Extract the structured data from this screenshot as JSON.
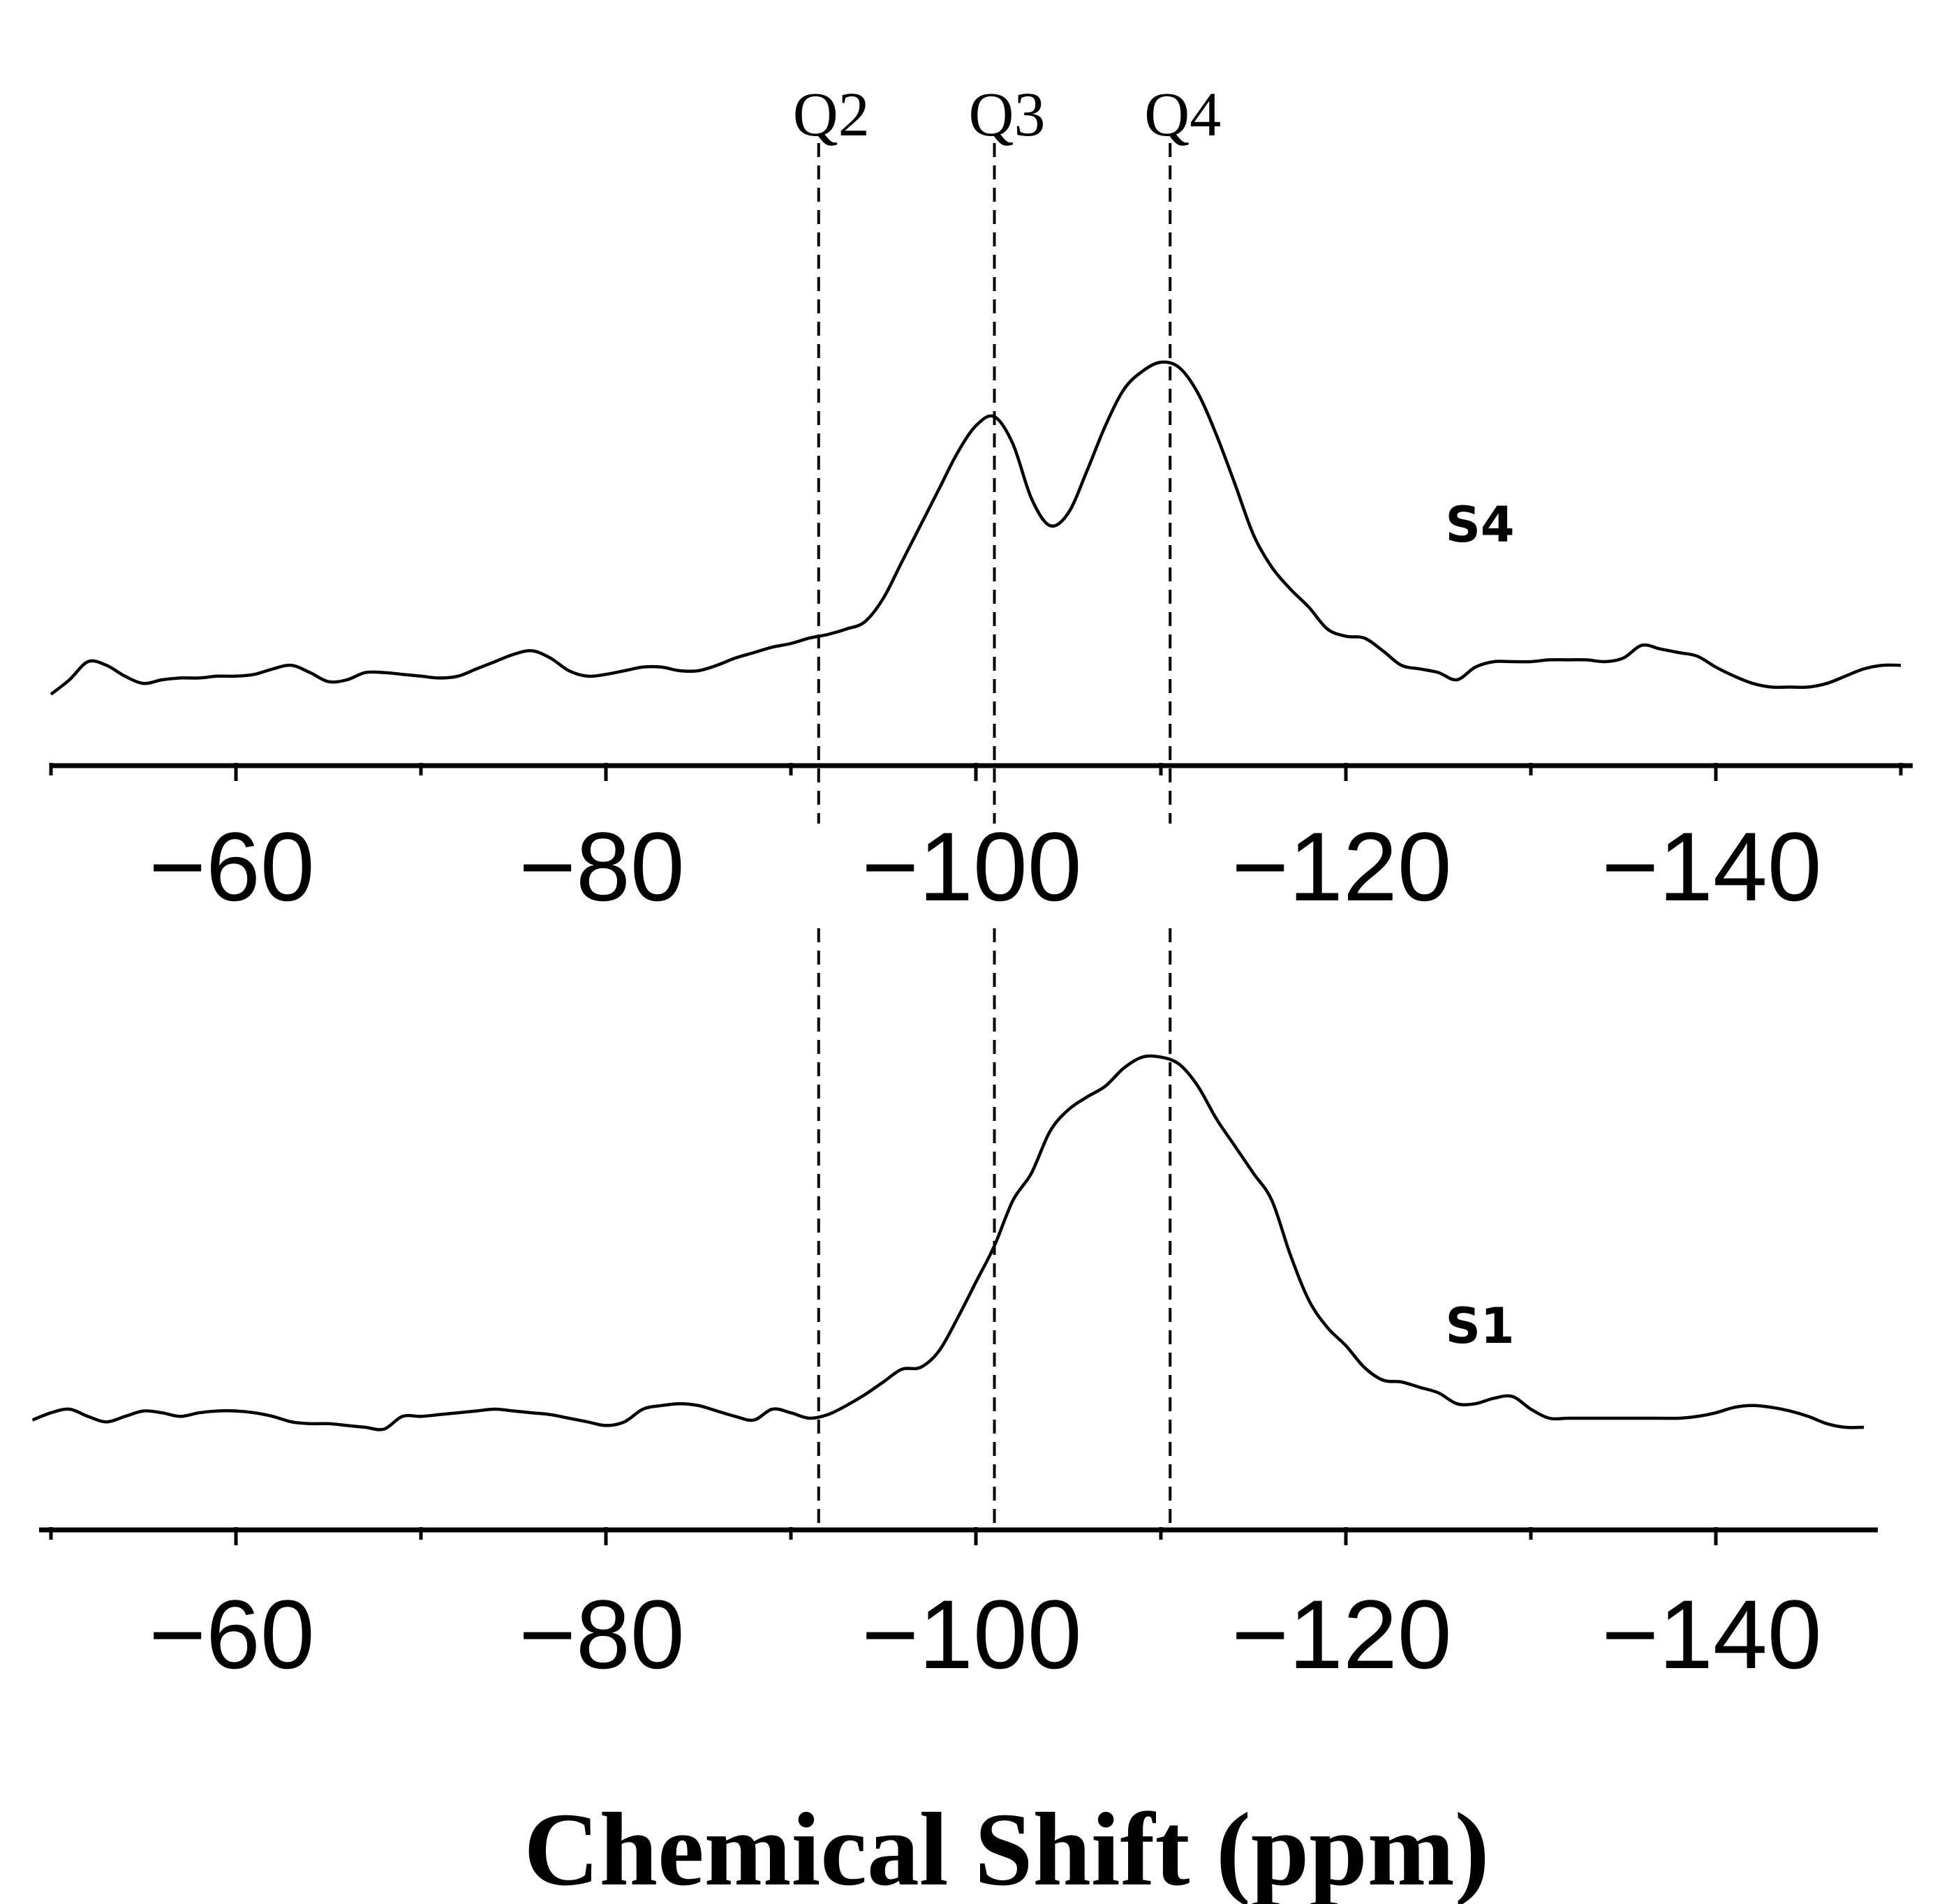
{
  "chart_data": {
    "type": "line",
    "xlabel": "Chemical Shift (ppm)",
    "xlim": [
      -50,
      -150
    ],
    "x_ticks": [
      -60,
      -80,
      -100,
      -120,
      -140
    ],
    "reference_lines": [
      {
        "label": "Q2",
        "x": -91.5
      },
      {
        "label": "Q3",
        "x": -101
      },
      {
        "label": "Q4",
        "x": -110.5
      }
    ],
    "panels": [
      {
        "name": "S4",
        "x": [
          -50,
          -51,
          -52,
          -53,
          -54,
          -55,
          -56,
          -57,
          -58,
          -59,
          -60,
          -61,
          -62,
          -63,
          -64,
          -65,
          -66,
          -67,
          -68,
          -69,
          -70,
          -71,
          -72,
          -73,
          -74,
          -75,
          -76,
          -77,
          -78,
          -79,
          -80,
          -81,
          -82,
          -83,
          -84,
          -85,
          -86,
          -87,
          -88,
          -89,
          -90,
          -91,
          -92,
          -93,
          -94,
          -95,
          -96,
          -97,
          -98,
          -99,
          -100,
          -101,
          -102,
          -103,
          -104,
          -105,
          -106,
          -107,
          -108,
          -109,
          -110,
          -111,
          -112,
          -113,
          -114,
          -115,
          -116,
          -117,
          -118,
          -119,
          -120,
          -121,
          -122,
          -123,
          -124,
          -125,
          -126,
          -127,
          -128,
          -129,
          -130,
          -131,
          -132,
          -133,
          -134,
          -135,
          -136,
          -137,
          -138,
          -139,
          -140,
          -141,
          -142,
          -143,
          -144,
          -145,
          -146,
          -147,
          -148,
          -149,
          -150
        ],
        "y": [
          0.02,
          0.1,
          0.2,
          0.18,
          0.12,
          0.08,
          0.1,
          0.11,
          0.11,
          0.12,
          0.12,
          0.13,
          0.16,
          0.18,
          0.14,
          0.09,
          0.1,
          0.14,
          0.14,
          0.13,
          0.12,
          0.11,
          0.12,
          0.16,
          0.2,
          0.24,
          0.26,
          0.22,
          0.15,
          0.12,
          0.13,
          0.15,
          0.17,
          0.17,
          0.15,
          0.15,
          0.18,
          0.22,
          0.25,
          0.28,
          0.3,
          0.33,
          0.35,
          0.38,
          0.42,
          0.55,
          0.75,
          0.95,
          1.15,
          1.35,
          1.5,
          1.55,
          1.4,
          1.1,
          0.95,
          1.02,
          1.25,
          1.5,
          1.7,
          1.8,
          1.85,
          1.82,
          1.68,
          1.45,
          1.18,
          0.9,
          0.72,
          0.6,
          0.5,
          0.38,
          0.34,
          0.33,
          0.26,
          0.18,
          0.16,
          0.14,
          0.1,
          0.17,
          0.2,
          0.2,
          0.2,
          0.21,
          0.21,
          0.21,
          0.2,
          0.22,
          0.29,
          0.27,
          0.25,
          0.23,
          0.17,
          0.12,
          0.08,
          0.06,
          0.06,
          0.06,
          0.08,
          0.12,
          0.16,
          0.18,
          0.18
        ]
      },
      {
        "name": "S1",
        "x": [
          -49,
          -50,
          -51,
          -52,
          -53,
          -54,
          -55,
          -56,
          -57,
          -58,
          -59,
          -60,
          -61,
          -62,
          -63,
          -64,
          -65,
          -66,
          -67,
          -68,
          -69,
          -70,
          -71,
          -72,
          -73,
          -74,
          -75,
          -76,
          -77,
          -78,
          -79,
          -80,
          -81,
          -82,
          -83,
          -84,
          -85,
          -86,
          -87,
          -88,
          -89,
          -90,
          -91,
          -92,
          -93,
          -94,
          -95,
          -96,
          -97,
          -98,
          -99,
          -100,
          -101,
          -102,
          -103,
          -104,
          -105,
          -106,
          -107,
          -108,
          -109,
          -110,
          -111,
          -112,
          -113,
          -114,
          -115,
          -116,
          -117,
          -118,
          -119,
          -120,
          -121,
          -122,
          -123,
          -124,
          -125,
          -126,
          -127,
          -128,
          -129,
          -130,
          -131,
          -132,
          -133,
          -134,
          -135,
          -136,
          -137,
          -138,
          -139,
          -140,
          -141,
          -142,
          -143,
          -144,
          -145,
          -146,
          -147,
          -148
        ],
        "y": [
          0.04,
          0.08,
          0.1,
          0.06,
          0.03,
          0.06,
          0.09,
          0.08,
          0.06,
          0.08,
          0.09,
          0.09,
          0.08,
          0.06,
          0.03,
          0.02,
          0.02,
          0.01,
          0.0,
          -0.01,
          0.06,
          0.06,
          0.07,
          0.08,
          0.09,
          0.1,
          0.09,
          0.08,
          0.07,
          0.05,
          0.03,
          0.01,
          0.03,
          0.1,
          0.12,
          0.13,
          0.12,
          0.09,
          0.06,
          0.04,
          0.1,
          0.08,
          0.05,
          0.07,
          0.12,
          0.18,
          0.25,
          0.32,
          0.33,
          0.42,
          0.6,
          0.8,
          1.0,
          1.25,
          1.4,
          1.63,
          1.75,
          1.82,
          1.88,
          1.98,
          2.04,
          2.04,
          2.0,
          1.88,
          1.7,
          1.55,
          1.4,
          1.25,
          0.95,
          0.7,
          0.55,
          0.45,
          0.33,
          0.26,
          0.25,
          0.22,
          0.19,
          0.13,
          0.13,
          0.16,
          0.17,
          0.1,
          0.05,
          0.05,
          0.05,
          0.05,
          0.05,
          0.05,
          0.05,
          0.05,
          0.06,
          0.08,
          0.11,
          0.12,
          0.11,
          0.09,
          0.06,
          0.02,
          0.0,
          0.0
        ]
      }
    ]
  }
}
